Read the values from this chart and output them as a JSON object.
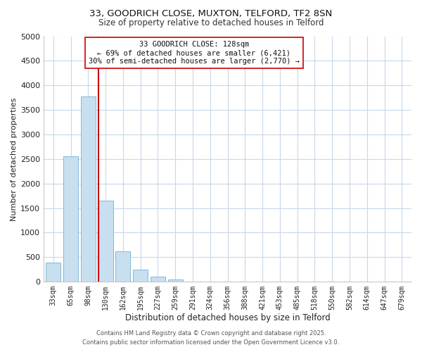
{
  "title1": "33, GOODRICH CLOSE, MUXTON, TELFORD, TF2 8SN",
  "title2": "Size of property relative to detached houses in Telford",
  "xlabel": "Distribution of detached houses by size in Telford",
  "ylabel": "Number of detached properties",
  "bar_labels": [
    "33sqm",
    "65sqm",
    "98sqm",
    "130sqm",
    "162sqm",
    "195sqm",
    "227sqm",
    "259sqm",
    "291sqm",
    "324sqm",
    "356sqm",
    "388sqm",
    "421sqm",
    "453sqm",
    "485sqm",
    "518sqm",
    "550sqm",
    "582sqm",
    "614sqm",
    "647sqm",
    "679sqm"
  ],
  "bar_values": [
    390,
    2550,
    3780,
    1650,
    620,
    250,
    105,
    50,
    0,
    0,
    0,
    0,
    0,
    0,
    0,
    0,
    0,
    0,
    0,
    0,
    0
  ],
  "bar_color": "#c8dff0",
  "bar_edge_color": "#7fb8d8",
  "vline_color": "#cc0000",
  "ylim": [
    0,
    5000
  ],
  "yticks": [
    0,
    500,
    1000,
    1500,
    2000,
    2500,
    3000,
    3500,
    4000,
    4500,
    5000
  ],
  "annotation_line1": "33 GOODRICH CLOSE: 128sqm",
  "annotation_line2": "← 69% of detached houses are smaller (6,421)",
  "annotation_line3": "30% of semi-detached houses are larger (2,770) →",
  "footer1": "Contains HM Land Registry data © Crown copyright and database right 2025.",
  "footer2": "Contains public sector information licensed under the Open Government Licence v3.0.",
  "bg_color": "#ffffff",
  "grid_color": "#c8d8e8",
  "annotation_box_edge": "#cc0000",
  "title1_fontsize": 9.5,
  "title2_fontsize": 8.5
}
